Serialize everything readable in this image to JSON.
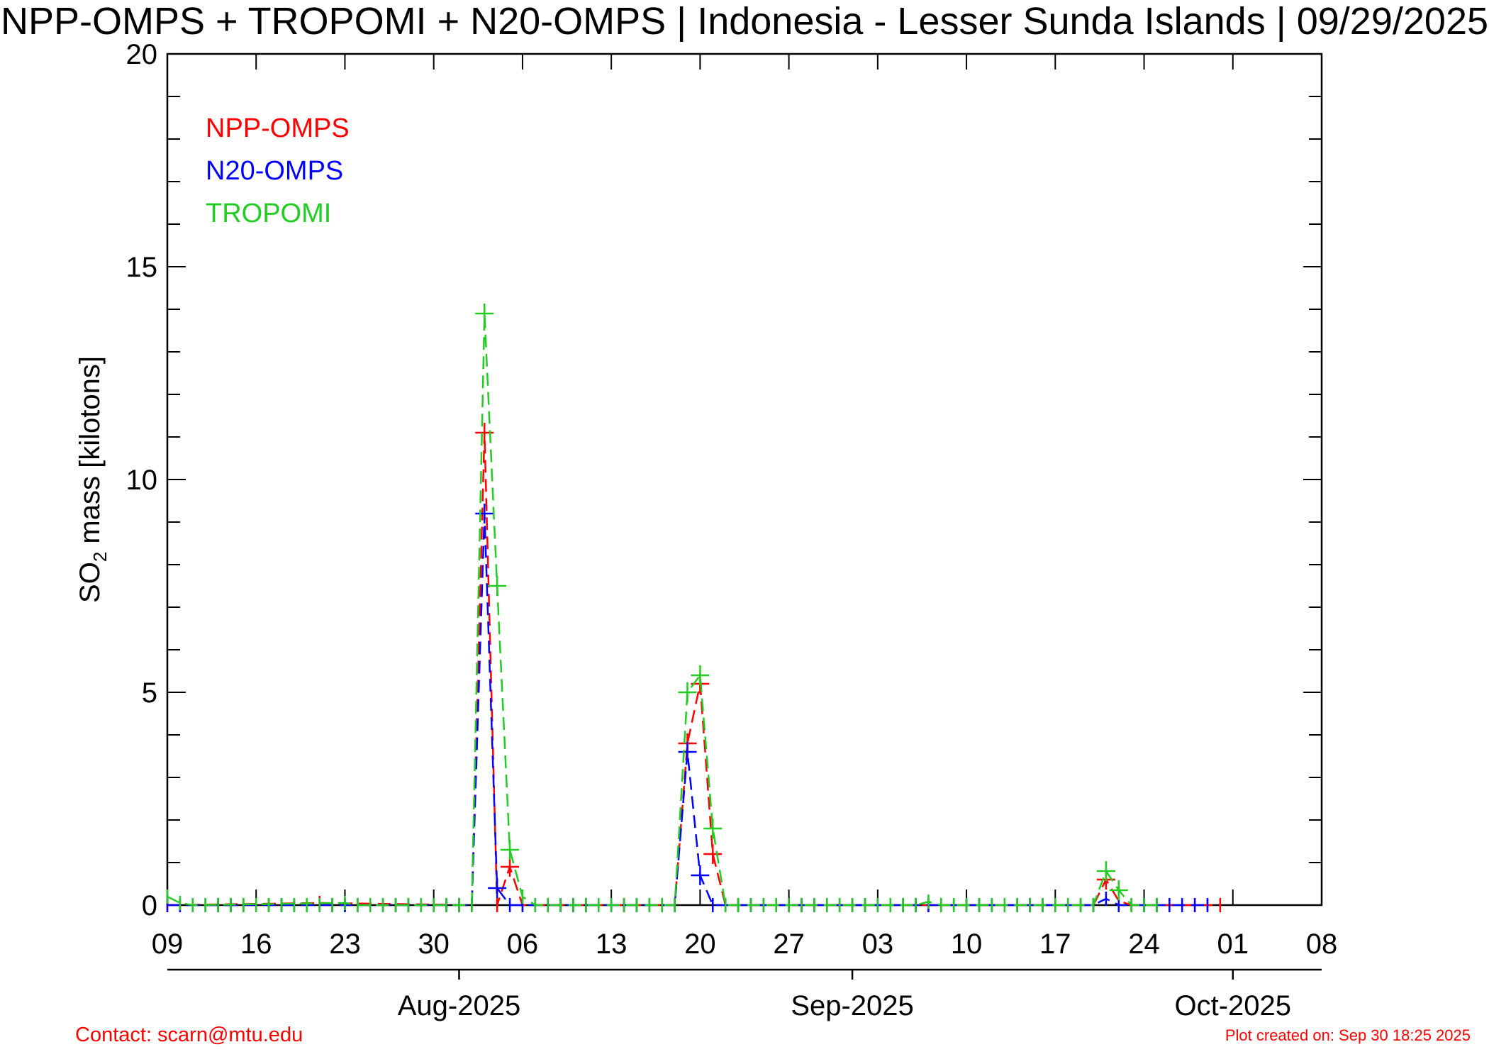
{
  "chart_data": {
    "type": "line",
    "title": "NPP-OMPS + TROPOMI + N20-OMPS | Indonesia - Lesser Sunda Islands | 09/29/2025",
    "ylabel_prefix": "SO",
    "ylabel_subscript": "2",
    "ylabel_suffix": " mass [kilotons]",
    "ylim": [
      0,
      20
    ],
    "yticks": [
      "0",
      "5",
      "10",
      "15",
      "20"
    ],
    "xlim": [
      "2025-07-09",
      "2025-10-08"
    ],
    "xtick_labels": [
      "09",
      "16",
      "23",
      "30",
      "06",
      "13",
      "20",
      "27",
      "03",
      "10",
      "17",
      "24",
      "01",
      "08"
    ],
    "month_labels": [
      "Aug-2025",
      "Sep-2025",
      "Oct-2025"
    ],
    "legend_position": "top-left",
    "series": [
      {
        "name": "NPP-OMPS",
        "color": "#ff0000",
        "points": [
          [
            "2025-07-09",
            0.0
          ],
          [
            "2025-07-21",
            0.05
          ],
          [
            "2025-08-02",
            0.0
          ],
          [
            "2025-08-03",
            11.1
          ],
          [
            "2025-08-04",
            0.0
          ],
          [
            "2025-08-05",
            0.9
          ],
          [
            "2025-08-06",
            0.0
          ],
          [
            "2025-08-18",
            0.0
          ],
          [
            "2025-08-19",
            3.8
          ],
          [
            "2025-08-20",
            5.2
          ],
          [
            "2025-08-21",
            1.2
          ],
          [
            "2025-08-22",
            0.0
          ],
          [
            "2025-09-20",
            0.0
          ],
          [
            "2025-09-21",
            0.6
          ],
          [
            "2025-09-22",
            0.1
          ],
          [
            "2025-09-23",
            0.0
          ],
          [
            "2025-09-30",
            0.0
          ]
        ]
      },
      {
        "name": "N20-OMPS",
        "color": "#0000ff",
        "points": [
          [
            "2025-07-09",
            0.0
          ],
          [
            "2025-08-02",
            0.0
          ],
          [
            "2025-08-03",
            9.2
          ],
          [
            "2025-08-04",
            0.4
          ],
          [
            "2025-08-05",
            0.0
          ],
          [
            "2025-08-18",
            0.0
          ],
          [
            "2025-08-19",
            3.6
          ],
          [
            "2025-08-20",
            0.7
          ],
          [
            "2025-08-21",
            0.0
          ],
          [
            "2025-09-20",
            0.0
          ],
          [
            "2025-09-21",
            0.15
          ],
          [
            "2025-09-22",
            0.0
          ],
          [
            "2025-09-29",
            0.0
          ]
        ]
      },
      {
        "name": "TROPOMI",
        "color": "#22cc22",
        "points": [
          [
            "2025-07-09",
            0.2
          ],
          [
            "2025-07-10",
            0.05
          ],
          [
            "2025-07-11",
            0.0
          ],
          [
            "2025-07-23",
            0.05
          ],
          [
            "2025-07-24",
            0.0
          ],
          [
            "2025-08-02",
            0.0
          ],
          [
            "2025-08-03",
            13.9
          ],
          [
            "2025-08-04",
            7.5
          ],
          [
            "2025-08-05",
            1.3
          ],
          [
            "2025-08-06",
            0.2
          ],
          [
            "2025-08-07",
            0.0
          ],
          [
            "2025-08-18",
            0.0
          ],
          [
            "2025-08-19",
            5.0
          ],
          [
            "2025-08-20",
            5.4
          ],
          [
            "2025-08-21",
            1.8
          ],
          [
            "2025-08-22",
            0.0
          ],
          [
            "2025-09-06",
            0.0
          ],
          [
            "2025-09-07",
            0.08
          ],
          [
            "2025-09-08",
            0.0
          ],
          [
            "2025-09-20",
            0.0
          ],
          [
            "2025-09-21",
            0.8
          ],
          [
            "2025-09-22",
            0.35
          ],
          [
            "2025-09-23",
            0.0
          ],
          [
            "2025-09-25",
            0.0
          ]
        ]
      }
    ]
  },
  "footer": {
    "contact": "Contact: scarn@mtu.edu",
    "created": "Plot created on: Sep 30 18:25 2025"
  }
}
